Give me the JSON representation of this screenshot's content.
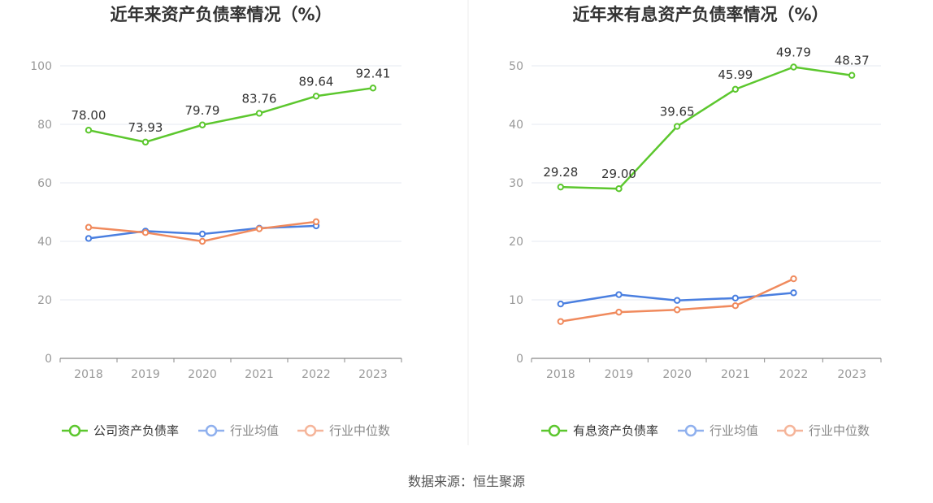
{
  "source_label": "数据来源：恒生聚源",
  "chart_data": [
    {
      "type": "line",
      "title": "近年来资产负债率情况（%）",
      "categories": [
        "2018",
        "2019",
        "2020",
        "2021",
        "2022",
        "2023"
      ],
      "ylim": [
        0,
        100
      ],
      "yticks": [
        0,
        20,
        40,
        60,
        80,
        100
      ],
      "grid": true,
      "legend": "bottom",
      "series": [
        {
          "name": "公司资产负债率",
          "color": "#5cc72e",
          "values": [
            78.0,
            73.93,
            79.79,
            83.76,
            89.64,
            92.41
          ],
          "labels": [
            "78.00",
            "73.93",
            "79.79",
            "83.76",
            "89.64",
            "92.41"
          ]
        },
        {
          "name": "行业均值",
          "color": "#4a7fe0",
          "values": [
            41.0,
            43.5,
            42.5,
            44.5,
            45.3,
            null
          ]
        },
        {
          "name": "行业中位数",
          "color": "#f08a5d",
          "values": [
            44.8,
            43.0,
            40.0,
            44.3,
            46.7,
            null
          ]
        }
      ]
    },
    {
      "type": "line",
      "title": "近年来有息资产负债率情况（%）",
      "categories": [
        "2018",
        "2019",
        "2020",
        "2021",
        "2022",
        "2023"
      ],
      "ylim": [
        0,
        50
      ],
      "yticks": [
        0,
        10,
        20,
        30,
        40,
        50
      ],
      "grid": true,
      "legend": "bottom",
      "series": [
        {
          "name": "有息资产负债率",
          "color": "#5cc72e",
          "values": [
            29.28,
            29.0,
            39.65,
            45.99,
            49.79,
            48.37
          ],
          "labels": [
            "29.28",
            "29.00",
            "39.65",
            "45.99",
            "49.79",
            "48.37"
          ]
        },
        {
          "name": "行业均值",
          "color": "#4a7fe0",
          "values": [
            9.3,
            10.9,
            9.9,
            10.3,
            11.2,
            null
          ]
        },
        {
          "name": "行业中位数",
          "color": "#f08a5d",
          "values": [
            6.3,
            7.9,
            8.3,
            9.0,
            13.6,
            null
          ]
        }
      ]
    }
  ]
}
